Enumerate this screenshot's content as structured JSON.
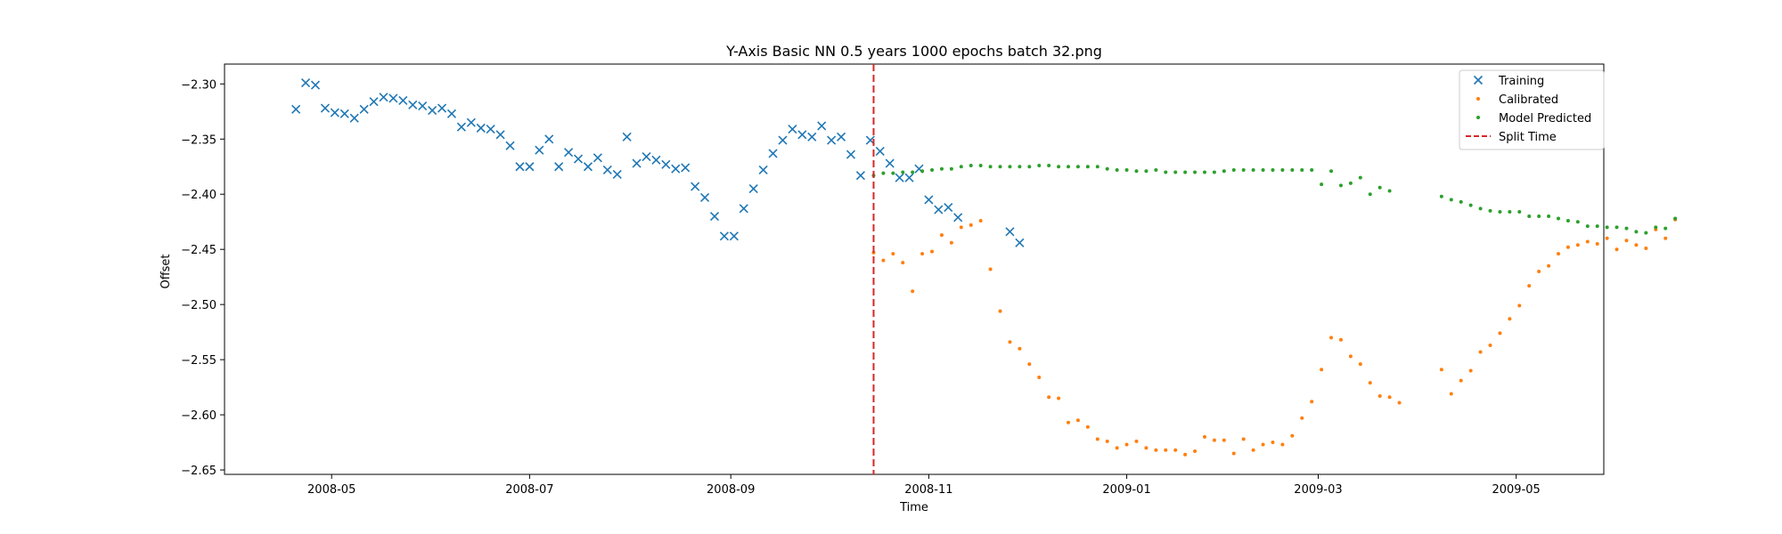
{
  "chart_data": {
    "type": "scatter",
    "title": "Y-Axis Basic NN 0.5 years 1000 epochs batch 32.png",
    "xlabel": "Time",
    "ylabel": "Offset",
    "xlim": [
      "2008-03-29",
      "2009-05-28"
    ],
    "ylim": [
      -2.654,
      -2.282
    ],
    "x_ticks": [
      "2008-05",
      "2008-07",
      "2008-09",
      "2008-11",
      "2009-01",
      "2009-03",
      "2009-05"
    ],
    "y_ticks": [
      -2.3,
      -2.35,
      -2.4,
      -2.45,
      -2.5,
      -2.55,
      -2.6,
      -2.65
    ],
    "grid": false,
    "legend_position": "top-right",
    "split_time": "2008-10-15",
    "series": [
      {
        "name": "Training",
        "marker": "x",
        "color": "#1f77b4",
        "points": [
          [
            "2008-04-20",
            -2.323
          ],
          [
            "2008-04-23",
            -2.299
          ],
          [
            "2008-04-26",
            -2.301
          ],
          [
            "2008-04-29",
            -2.322
          ],
          [
            "2008-05-02",
            -2.326
          ],
          [
            "2008-05-05",
            -2.327
          ],
          [
            "2008-05-08",
            -2.331
          ],
          [
            "2008-05-11",
            -2.323
          ],
          [
            "2008-05-14",
            -2.316
          ],
          [
            "2008-05-17",
            -2.312
          ],
          [
            "2008-05-20",
            -2.313
          ],
          [
            "2008-05-23",
            -2.315
          ],
          [
            "2008-05-26",
            -2.319
          ],
          [
            "2008-05-29",
            -2.32
          ],
          [
            "2008-06-01",
            -2.324
          ],
          [
            "2008-06-04",
            -2.322
          ],
          [
            "2008-06-07",
            -2.327
          ],
          [
            "2008-06-10",
            -2.339
          ],
          [
            "2008-06-13",
            -2.335
          ],
          [
            "2008-06-16",
            -2.34
          ],
          [
            "2008-06-19",
            -2.341
          ],
          [
            "2008-06-22",
            -2.346
          ],
          [
            "2008-06-25",
            -2.356
          ],
          [
            "2008-06-28",
            -2.375
          ],
          [
            "2008-07-01",
            -2.375
          ],
          [
            "2008-07-04",
            -2.36
          ],
          [
            "2008-07-07",
            -2.35
          ],
          [
            "2008-07-10",
            -2.375
          ],
          [
            "2008-07-13",
            -2.362
          ],
          [
            "2008-07-16",
            -2.368
          ],
          [
            "2008-07-19",
            -2.375
          ],
          [
            "2008-07-22",
            -2.367
          ],
          [
            "2008-07-25",
            -2.378
          ],
          [
            "2008-07-28",
            -2.382
          ],
          [
            "2008-07-31",
            -2.348
          ],
          [
            "2008-08-03",
            -2.372
          ],
          [
            "2008-08-06",
            -2.366
          ],
          [
            "2008-08-09",
            -2.369
          ],
          [
            "2008-08-12",
            -2.373
          ],
          [
            "2008-08-15",
            -2.377
          ],
          [
            "2008-08-18",
            -2.376
          ],
          [
            "2008-08-21",
            -2.393
          ],
          [
            "2008-08-24",
            -2.403
          ],
          [
            "2008-08-27",
            -2.42
          ],
          [
            "2008-08-30",
            -2.438
          ],
          [
            "2008-09-02",
            -2.438
          ],
          [
            "2008-09-05",
            -2.413
          ],
          [
            "2008-09-08",
            -2.395
          ],
          [
            "2008-09-11",
            -2.378
          ],
          [
            "2008-09-14",
            -2.363
          ],
          [
            "2008-09-17",
            -2.351
          ],
          [
            "2008-09-20",
            -2.341
          ],
          [
            "2008-09-23",
            -2.346
          ],
          [
            "2008-09-26",
            -2.348
          ],
          [
            "2008-09-29",
            -2.338
          ],
          [
            "2008-10-02",
            -2.351
          ],
          [
            "2008-10-05",
            -2.348
          ],
          [
            "2008-10-08",
            -2.364
          ],
          [
            "2008-10-11",
            -2.383
          ],
          [
            "2008-10-14",
            -2.351
          ],
          [
            "2008-10-17",
            -2.361
          ],
          [
            "2008-10-20",
            -2.372
          ],
          [
            "2008-10-23",
            -2.385
          ],
          [
            "2008-10-26",
            -2.385
          ],
          [
            "2008-10-29",
            -2.377
          ],
          [
            "2008-11-01",
            -2.405
          ],
          [
            "2008-11-04",
            -2.414
          ],
          [
            "2008-11-07",
            -2.412
          ],
          [
            "2008-11-10",
            -2.421
          ],
          [
            "2008-11-26",
            -2.434
          ],
          [
            "2008-11-29",
            -2.444
          ]
        ]
      },
      {
        "name": "Calibrated",
        "marker": "dot",
        "color": "#ff7f0e",
        "points": [
          [
            "2008-10-15",
            -2.453
          ],
          [
            "2008-10-18",
            -2.46
          ],
          [
            "2008-10-21",
            -2.454
          ],
          [
            "2008-10-24",
            -2.462
          ],
          [
            "2008-10-27",
            -2.488
          ],
          [
            "2008-10-30",
            -2.454
          ],
          [
            "2008-11-02",
            -2.452
          ],
          [
            "2008-11-05",
            -2.437
          ],
          [
            "2008-11-08",
            -2.444
          ],
          [
            "2008-11-11",
            -2.43
          ],
          [
            "2008-11-14",
            -2.428
          ],
          [
            "2008-11-17",
            -2.424
          ],
          [
            "2008-11-20",
            -2.468
          ],
          [
            "2008-11-23",
            -2.506
          ],
          [
            "2008-11-26",
            -2.534
          ],
          [
            "2008-11-29",
            -2.54
          ],
          [
            "2008-12-02",
            -2.554
          ],
          [
            "2008-12-05",
            -2.566
          ],
          [
            "2008-12-08",
            -2.584
          ],
          [
            "2008-12-11",
            -2.585
          ],
          [
            "2008-12-14",
            -2.607
          ],
          [
            "2008-12-17",
            -2.605
          ],
          [
            "2008-12-20",
            -2.611
          ],
          [
            "2008-12-23",
            -2.622
          ],
          [
            "2008-12-26",
            -2.624
          ],
          [
            "2008-12-29",
            -2.63
          ],
          [
            "2009-01-01",
            -2.627
          ],
          [
            "2009-01-04",
            -2.624
          ],
          [
            "2009-01-07",
            -2.63
          ],
          [
            "2009-01-10",
            -2.632
          ],
          [
            "2009-01-13",
            -2.632
          ],
          [
            "2009-01-16",
            -2.632
          ],
          [
            "2009-01-19",
            -2.636
          ],
          [
            "2009-01-22",
            -2.633
          ],
          [
            "2009-01-25",
            -2.62
          ],
          [
            "2009-01-28",
            -2.623
          ],
          [
            "2009-01-31",
            -2.623
          ],
          [
            "2009-02-03",
            -2.635
          ],
          [
            "2009-02-06",
            -2.622
          ],
          [
            "2009-02-09",
            -2.632
          ],
          [
            "2009-02-12",
            -2.627
          ],
          [
            "2009-02-15",
            -2.625
          ],
          [
            "2009-02-18",
            -2.627
          ],
          [
            "2009-02-21",
            -2.619
          ],
          [
            "2009-02-24",
            -2.603
          ],
          [
            "2009-02-27",
            -2.588
          ],
          [
            "2009-03-02",
            -2.559
          ],
          [
            "2009-03-05",
            -2.53
          ],
          [
            "2009-03-08",
            -2.532
          ],
          [
            "2009-03-11",
            -2.547
          ],
          [
            "2009-03-14",
            -2.554
          ],
          [
            "2009-03-17",
            -2.571
          ],
          [
            "2009-03-20",
            -2.583
          ],
          [
            "2009-03-23",
            -2.584
          ],
          [
            "2009-03-26",
            -2.589
          ],
          [
            "2009-04-08",
            -2.559
          ],
          [
            "2009-04-11",
            -2.581
          ],
          [
            "2009-04-14",
            -2.569
          ],
          [
            "2009-04-17",
            -2.56
          ],
          [
            "2009-04-20",
            -2.543
          ],
          [
            "2009-04-23",
            -2.537
          ],
          [
            "2009-04-26",
            -2.526
          ],
          [
            "2009-04-29",
            -2.513
          ],
          [
            "2009-05-02",
            -2.501
          ],
          [
            "2009-05-05",
            -2.483
          ],
          [
            "2009-05-08",
            -2.47
          ],
          [
            "2009-05-11",
            -2.465
          ],
          [
            "2009-05-14",
            -2.454
          ],
          [
            "2009-05-17",
            -2.448
          ],
          [
            "2009-05-20",
            -2.446
          ],
          [
            "2009-05-23",
            -2.443
          ],
          [
            "2009-05-26",
            -2.445
          ],
          [
            "2009-05-29",
            -2.44
          ],
          [
            "2009-06-01",
            -2.45
          ],
          [
            "2009-06-04",
            -2.442
          ],
          [
            "2009-06-07",
            -2.446
          ],
          [
            "2009-06-10",
            -2.449
          ],
          [
            "2009-06-13",
            -2.432
          ],
          [
            "2009-06-16",
            -2.44
          ],
          [
            "2009-06-19",
            -2.423
          ]
        ]
      },
      {
        "name": "Model Predicted",
        "marker": "dot",
        "color": "#2ca02c",
        "points": [
          [
            "2008-10-15",
            -2.383
          ],
          [
            "2008-10-18",
            -2.381
          ],
          [
            "2008-10-21",
            -2.381
          ],
          [
            "2008-10-24",
            -2.38
          ],
          [
            "2008-10-27",
            -2.38
          ],
          [
            "2008-10-30",
            -2.379
          ],
          [
            "2008-11-02",
            -2.378
          ],
          [
            "2008-11-05",
            -2.377
          ],
          [
            "2008-11-08",
            -2.377
          ],
          [
            "2008-11-11",
            -2.375
          ],
          [
            "2008-11-14",
            -2.374
          ],
          [
            "2008-11-17",
            -2.374
          ],
          [
            "2008-11-20",
            -2.375
          ],
          [
            "2008-11-23",
            -2.375
          ],
          [
            "2008-11-26",
            -2.375
          ],
          [
            "2008-11-29",
            -2.375
          ],
          [
            "2008-12-02",
            -2.375
          ],
          [
            "2008-12-05",
            -2.374
          ],
          [
            "2008-12-08",
            -2.374
          ],
          [
            "2008-12-11",
            -2.375
          ],
          [
            "2008-12-14",
            -2.375
          ],
          [
            "2008-12-17",
            -2.375
          ],
          [
            "2008-12-20",
            -2.375
          ],
          [
            "2008-12-23",
            -2.375
          ],
          [
            "2008-12-26",
            -2.377
          ],
          [
            "2008-12-29",
            -2.378
          ],
          [
            "2009-01-01",
            -2.378
          ],
          [
            "2009-01-04",
            -2.379
          ],
          [
            "2009-01-07",
            -2.379
          ],
          [
            "2009-01-10",
            -2.378
          ],
          [
            "2009-01-13",
            -2.38
          ],
          [
            "2009-01-16",
            -2.38
          ],
          [
            "2009-01-19",
            -2.38
          ],
          [
            "2009-01-22",
            -2.38
          ],
          [
            "2009-01-25",
            -2.38
          ],
          [
            "2009-01-28",
            -2.38
          ],
          [
            "2009-01-31",
            -2.379
          ],
          [
            "2009-02-03",
            -2.378
          ],
          [
            "2009-02-06",
            -2.378
          ],
          [
            "2009-02-09",
            -2.378
          ],
          [
            "2009-02-12",
            -2.378
          ],
          [
            "2009-02-15",
            -2.378
          ],
          [
            "2009-02-18",
            -2.378
          ],
          [
            "2009-02-21",
            -2.378
          ],
          [
            "2009-02-24",
            -2.378
          ],
          [
            "2009-02-27",
            -2.378
          ],
          [
            "2009-03-02",
            -2.391
          ],
          [
            "2009-03-05",
            -2.379
          ],
          [
            "2009-03-08",
            -2.392
          ],
          [
            "2009-03-11",
            -2.39
          ],
          [
            "2009-03-14",
            -2.385
          ],
          [
            "2009-03-17",
            -2.4
          ],
          [
            "2009-03-20",
            -2.394
          ],
          [
            "2009-03-23",
            -2.397
          ],
          [
            "2009-04-08",
            -2.402
          ],
          [
            "2009-04-11",
            -2.405
          ],
          [
            "2009-04-14",
            -2.407
          ],
          [
            "2009-04-17",
            -2.41
          ],
          [
            "2009-04-20",
            -2.413
          ],
          [
            "2009-04-23",
            -2.415
          ],
          [
            "2009-04-26",
            -2.416
          ],
          [
            "2009-04-29",
            -2.416
          ],
          [
            "2009-05-02",
            -2.416
          ],
          [
            "2009-05-05",
            -2.42
          ],
          [
            "2009-05-08",
            -2.42
          ],
          [
            "2009-05-11",
            -2.42
          ],
          [
            "2009-05-14",
            -2.422
          ],
          [
            "2009-05-17",
            -2.424
          ],
          [
            "2009-05-20",
            -2.425
          ],
          [
            "2009-05-23",
            -2.429
          ],
          [
            "2009-05-26",
            -2.429
          ],
          [
            "2009-05-29",
            -2.43
          ],
          [
            "2009-06-01",
            -2.43
          ],
          [
            "2009-06-04",
            -2.431
          ],
          [
            "2009-06-07",
            -2.434
          ],
          [
            "2009-06-10",
            -2.435
          ],
          [
            "2009-06-13",
            -2.43
          ],
          [
            "2009-06-16",
            -2.431
          ],
          [
            "2009-06-19",
            -2.422
          ]
        ]
      }
    ],
    "legend": [
      {
        "label": "Training",
        "marker": "x",
        "color": "#1f77b4"
      },
      {
        "label": "Calibrated",
        "marker": "dot",
        "color": "#ff7f0e"
      },
      {
        "label": "Model Predicted",
        "marker": "dot",
        "color": "#2ca02c"
      },
      {
        "label": "Split Time",
        "marker": "dashed-line",
        "color": "#d62728"
      }
    ]
  }
}
